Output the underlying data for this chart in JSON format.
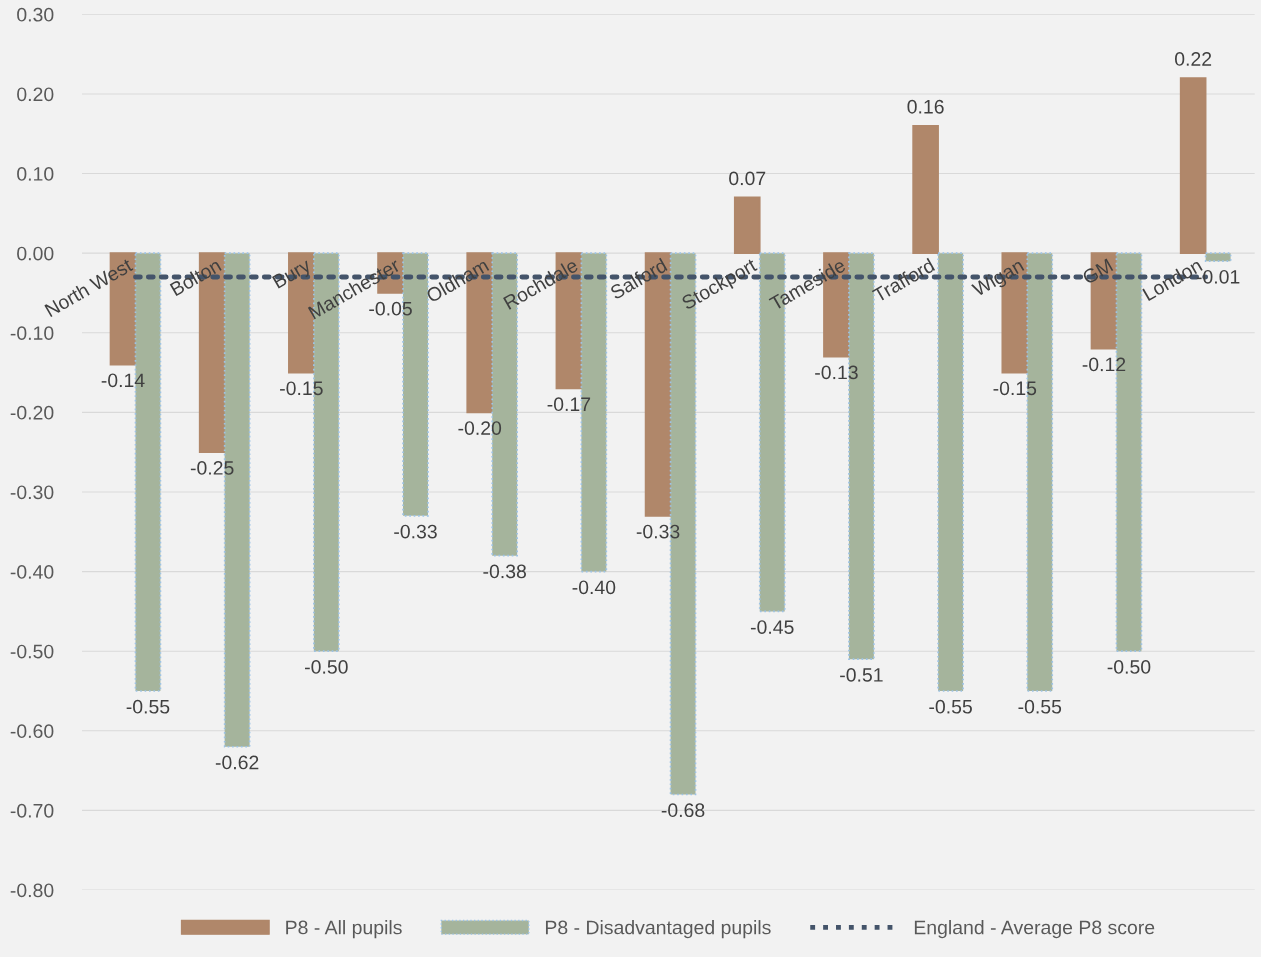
{
  "chart_data": {
    "type": "bar",
    "categories": [
      "North West",
      "Bolton",
      "Bury",
      "Manchester",
      "Oldham",
      "Rochdale",
      "Salford",
      "Stockport",
      "Tameside",
      "Trafford",
      "Wigan",
      "GM",
      "London"
    ],
    "series": [
      {
        "name": "P8 - All pupils",
        "color": "#b0876a",
        "values": [
          -0.14,
          -0.25,
          -0.15,
          -0.05,
          -0.2,
          -0.17,
          -0.33,
          0.07,
          -0.13,
          0.16,
          -0.15,
          -0.12,
          0.22
        ],
        "value_labels": [
          "-0.14",
          "-0.25",
          "-0.15",
          "-0.05",
          "-0.20",
          "-0.17",
          "-0.33",
          "0.07",
          "-0.13",
          "0.16",
          "-0.15",
          "-0.12",
          "0.22"
        ]
      },
      {
        "name": "P8 - Disadvantaged pupils",
        "color": "#a5b49c",
        "values": [
          -0.55,
          -0.62,
          -0.5,
          -0.33,
          -0.38,
          -0.4,
          -0.68,
          -0.45,
          -0.51,
          -0.55,
          -0.55,
          -0.5,
          -0.01
        ],
        "value_labels": [
          "-0.55",
          "-0.62",
          "-0.50",
          "-0.33",
          "-0.38",
          "-0.40",
          "-0.68",
          "-0.45",
          "-0.51",
          "-0.55",
          "-0.55",
          "-0.50",
          "-0.01"
        ]
      },
      {
        "name": "England - Average P8 score",
        "type": "line",
        "color": "#44546a",
        "line_style": "dotted",
        "values": [
          -0.03,
          -0.03,
          -0.03,
          -0.03,
          -0.03,
          -0.03,
          -0.03,
          -0.03,
          -0.03,
          -0.03,
          -0.03,
          -0.03,
          -0.03
        ]
      }
    ],
    "ylim": [
      -0.8,
      0.3
    ],
    "yticks": [
      {
        "value": -0.8,
        "label": "-0.80"
      },
      {
        "value": -0.7,
        "label": "-0.70"
      },
      {
        "value": -0.6,
        "label": "-0.60"
      },
      {
        "value": -0.5,
        "label": "-0.50"
      },
      {
        "value": -0.4,
        "label": "-0.40"
      },
      {
        "value": -0.3,
        "label": "-0.30"
      },
      {
        "value": -0.2,
        "label": "-0.20"
      },
      {
        "value": -0.1,
        "label": "-0.10"
      },
      {
        "value": 0,
        "label": "0.00"
      },
      {
        "value": 0.1,
        "label": "0.10"
      },
      {
        "value": 0.2,
        "label": "0.20"
      },
      {
        "value": 0.3,
        "label": "0.30"
      }
    ],
    "grid": "y",
    "legend": "bottom"
  }
}
